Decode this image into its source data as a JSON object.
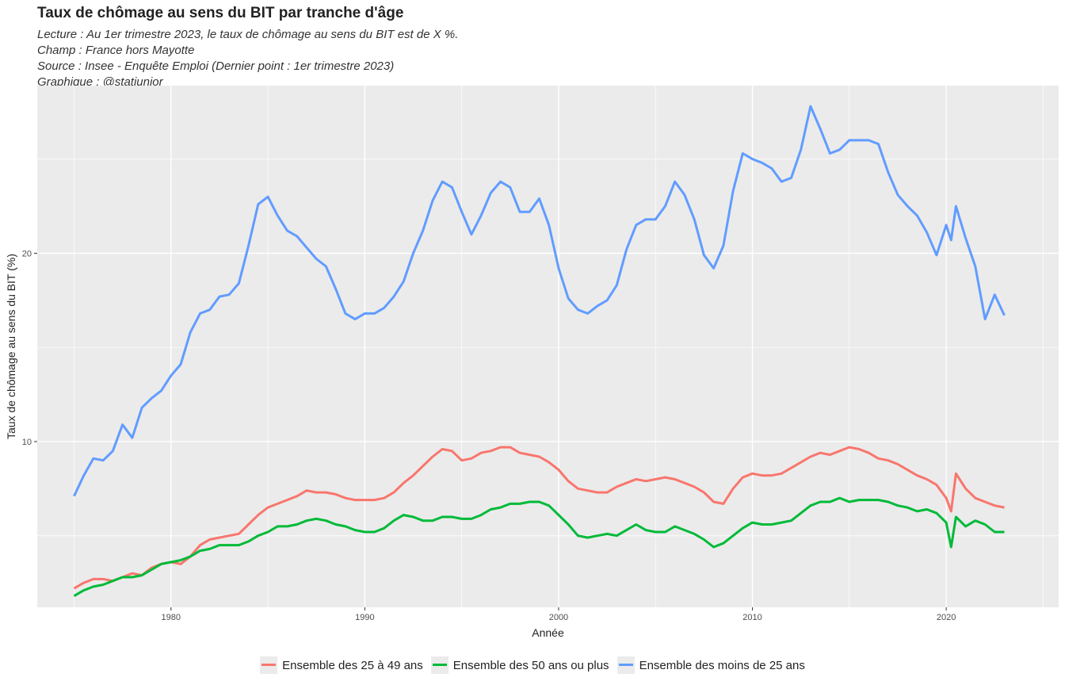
{
  "chart_data": {
    "type": "line",
    "title": "Taux de chômage au sens du BIT par tranche d'âge",
    "subtitle": [
      "Lecture : Au 1er trimestre 2023, le taux de chômage au sens du BIT est de X %.",
      "Champ : France hors Mayotte",
      "Source : Insee - Enquête Emploi (Dernier point : 1er trimestre 2023)",
      "Graphique : @statjunior"
    ],
    "xlabel": "Année",
    "ylabel": "Taux de chômage au sens du BIT (%)",
    "xlim": [
      1973.1,
      2025.8
    ],
    "ylim": [
      1.2,
      28.9
    ],
    "x_ticks": [
      1980,
      1990,
      2000,
      2010,
      2020
    ],
    "y_ticks": [
      10,
      20
    ],
    "grid": true,
    "background": "#ebebeb",
    "legend_position": "bottom",
    "series": [
      {
        "name": "Ensemble des 25 à 49 ans",
        "color": "#f8766d",
        "points": [
          [
            1975,
            2.2
          ],
          [
            1975.5,
            2.5
          ],
          [
            1976,
            2.7
          ],
          [
            1976.5,
            2.7
          ],
          [
            1977,
            2.6
          ],
          [
            1977.5,
            2.8
          ],
          [
            1978,
            3
          ],
          [
            1978.5,
            2.9
          ],
          [
            1979,
            3.3
          ],
          [
            1979.5,
            3.5
          ],
          [
            1980,
            3.6
          ],
          [
            1980.5,
            3.5
          ],
          [
            1981,
            3.9
          ],
          [
            1981.5,
            4.5
          ],
          [
            1982,
            4.8
          ],
          [
            1982.5,
            4.9
          ],
          [
            1983,
            5
          ],
          [
            1983.5,
            5.1
          ],
          [
            1984,
            5.6
          ],
          [
            1984.5,
            6.1
          ],
          [
            1985,
            6.5
          ],
          [
            1985.5,
            6.7
          ],
          [
            1986,
            6.9
          ],
          [
            1986.5,
            7.1
          ],
          [
            1987,
            7.4
          ],
          [
            1987.5,
            7.3
          ],
          [
            1988,
            7.3
          ],
          [
            1988.5,
            7.2
          ],
          [
            1989,
            7
          ],
          [
            1989.5,
            6.9
          ],
          [
            1990,
            6.9
          ],
          [
            1990.5,
            6.9
          ],
          [
            1991,
            7
          ],
          [
            1991.5,
            7.3
          ],
          [
            1992,
            7.8
          ],
          [
            1992.5,
            8.2
          ],
          [
            1993,
            8.7
          ],
          [
            1993.5,
            9.2
          ],
          [
            1994,
            9.6
          ],
          [
            1994.5,
            9.5
          ],
          [
            1995,
            9
          ],
          [
            1995.5,
            9.1
          ],
          [
            1996,
            9.4
          ],
          [
            1996.5,
            9.5
          ],
          [
            1997,
            9.7
          ],
          [
            1997.5,
            9.7
          ],
          [
            1998,
            9.4
          ],
          [
            1998.5,
            9.3
          ],
          [
            1999,
            9.2
          ],
          [
            1999.5,
            8.9
          ],
          [
            2000,
            8.5
          ],
          [
            2000.5,
            7.9
          ],
          [
            2001,
            7.5
          ],
          [
            2001.5,
            7.4
          ],
          [
            2002,
            7.3
          ],
          [
            2002.5,
            7.3
          ],
          [
            2003,
            7.6
          ],
          [
            2003.5,
            7.8
          ],
          [
            2004,
            8
          ],
          [
            2004.5,
            7.9
          ],
          [
            2005,
            8
          ],
          [
            2005.5,
            8.1
          ],
          [
            2006,
            8
          ],
          [
            2006.5,
            7.8
          ],
          [
            2007,
            7.6
          ],
          [
            2007.5,
            7.3
          ],
          [
            2008,
            6.8
          ],
          [
            2008.5,
            6.7
          ],
          [
            2009,
            7.5
          ],
          [
            2009.5,
            8.1
          ],
          [
            2010,
            8.3
          ],
          [
            2010.5,
            8.2
          ],
          [
            2011,
            8.2
          ],
          [
            2011.5,
            8.3
          ],
          [
            2012,
            8.6
          ],
          [
            2012.5,
            8.9
          ],
          [
            2013,
            9.2
          ],
          [
            2013.5,
            9.4
          ],
          [
            2014,
            9.3
          ],
          [
            2014.5,
            9.5
          ],
          [
            2015,
            9.7
          ],
          [
            2015.5,
            9.6
          ],
          [
            2016,
            9.4
          ],
          [
            2016.5,
            9.1
          ],
          [
            2017,
            9
          ],
          [
            2017.5,
            8.8
          ],
          [
            2018,
            8.5
          ],
          [
            2018.5,
            8.2
          ],
          [
            2019,
            8
          ],
          [
            2019.5,
            7.7
          ],
          [
            2020,
            7
          ],
          [
            2020.25,
            6.3
          ],
          [
            2020.5,
            8.3
          ],
          [
            2021,
            7.5
          ],
          [
            2021.5,
            7
          ],
          [
            2022,
            6.8
          ],
          [
            2022.5,
            6.6
          ],
          [
            2023,
            6.5
          ]
        ]
      },
      {
        "name": "Ensemble des 50 ans ou plus",
        "color": "#00ba38",
        "points": [
          [
            1975,
            1.8
          ],
          [
            1975.5,
            2.1
          ],
          [
            1976,
            2.3
          ],
          [
            1976.5,
            2.4
          ],
          [
            1977,
            2.6
          ],
          [
            1977.5,
            2.8
          ],
          [
            1978,
            2.8
          ],
          [
            1978.5,
            2.9
          ],
          [
            1979,
            3.2
          ],
          [
            1979.5,
            3.5
          ],
          [
            1980,
            3.6
          ],
          [
            1980.5,
            3.7
          ],
          [
            1981,
            3.9
          ],
          [
            1981.5,
            4.2
          ],
          [
            1982,
            4.3
          ],
          [
            1982.5,
            4.5
          ],
          [
            1983,
            4.5
          ],
          [
            1983.5,
            4.5
          ],
          [
            1984,
            4.7
          ],
          [
            1984.5,
            5
          ],
          [
            1985,
            5.2
          ],
          [
            1985.5,
            5.5
          ],
          [
            1986,
            5.5
          ],
          [
            1986.5,
            5.6
          ],
          [
            1987,
            5.8
          ],
          [
            1987.5,
            5.9
          ],
          [
            1988,
            5.8
          ],
          [
            1988.5,
            5.6
          ],
          [
            1989,
            5.5
          ],
          [
            1989.5,
            5.3
          ],
          [
            1990,
            5.2
          ],
          [
            1990.5,
            5.2
          ],
          [
            1991,
            5.4
          ],
          [
            1991.5,
            5.8
          ],
          [
            1992,
            6.1
          ],
          [
            1992.5,
            6
          ],
          [
            1993,
            5.8
          ],
          [
            1993.5,
            5.8
          ],
          [
            1994,
            6
          ],
          [
            1994.5,
            6
          ],
          [
            1995,
            5.9
          ],
          [
            1995.5,
            5.9
          ],
          [
            1996,
            6.1
          ],
          [
            1996.5,
            6.4
          ],
          [
            1997,
            6.5
          ],
          [
            1997.5,
            6.7
          ],
          [
            1998,
            6.7
          ],
          [
            1998.5,
            6.8
          ],
          [
            1999,
            6.8
          ],
          [
            1999.5,
            6.6
          ],
          [
            2000,
            6.1
          ],
          [
            2000.5,
            5.6
          ],
          [
            2001,
            5
          ],
          [
            2001.5,
            4.9
          ],
          [
            2002,
            5
          ],
          [
            2002.5,
            5.1
          ],
          [
            2003,
            5
          ],
          [
            2003.5,
            5.3
          ],
          [
            2004,
            5.6
          ],
          [
            2004.5,
            5.3
          ],
          [
            2005,
            5.2
          ],
          [
            2005.5,
            5.2
          ],
          [
            2006,
            5.5
          ],
          [
            2006.5,
            5.3
          ],
          [
            2007,
            5.1
          ],
          [
            2007.5,
            4.8
          ],
          [
            2008,
            4.4
          ],
          [
            2008.5,
            4.6
          ],
          [
            2009,
            5
          ],
          [
            2009.5,
            5.4
          ],
          [
            2010,
            5.7
          ],
          [
            2010.5,
            5.6
          ],
          [
            2011,
            5.6
          ],
          [
            2011.5,
            5.7
          ],
          [
            2012,
            5.8
          ],
          [
            2012.5,
            6.2
          ],
          [
            2013,
            6.6
          ],
          [
            2013.5,
            6.8
          ],
          [
            2014,
            6.8
          ],
          [
            2014.5,
            7
          ],
          [
            2015,
            6.8
          ],
          [
            2015.5,
            6.9
          ],
          [
            2016,
            6.9
          ],
          [
            2016.5,
            6.9
          ],
          [
            2017,
            6.8
          ],
          [
            2017.5,
            6.6
          ],
          [
            2018,
            6.5
          ],
          [
            2018.5,
            6.3
          ],
          [
            2019,
            6.4
          ],
          [
            2019.5,
            6.2
          ],
          [
            2020,
            5.7
          ],
          [
            2020.25,
            4.4
          ],
          [
            2020.5,
            6
          ],
          [
            2021,
            5.5
          ],
          [
            2021.5,
            5.8
          ],
          [
            2022,
            5.6
          ],
          [
            2022.5,
            5.2
          ],
          [
            2023,
            5.2
          ]
        ]
      },
      {
        "name": "Ensemble des moins de 25 ans",
        "color": "#619cff",
        "points": [
          [
            1975,
            7.1
          ],
          [
            1975.5,
            8.2
          ],
          [
            1976,
            9.1
          ],
          [
            1976.5,
            9
          ],
          [
            1977,
            9.5
          ],
          [
            1977.5,
            10.9
          ],
          [
            1978,
            10.2
          ],
          [
            1978.5,
            11.8
          ],
          [
            1979,
            12.3
          ],
          [
            1979.5,
            12.7
          ],
          [
            1980,
            13.5
          ],
          [
            1980.5,
            14.1
          ],
          [
            1981,
            15.8
          ],
          [
            1981.5,
            16.8
          ],
          [
            1982,
            17
          ],
          [
            1982.5,
            17.7
          ],
          [
            1983,
            17.8
          ],
          [
            1983.5,
            18.4
          ],
          [
            1984,
            20.4
          ],
          [
            1984.5,
            22.6
          ],
          [
            1985,
            23
          ],
          [
            1985.5,
            22
          ],
          [
            1986,
            21.2
          ],
          [
            1986.5,
            20.9
          ],
          [
            1987,
            20.3
          ],
          [
            1987.5,
            19.7
          ],
          [
            1988,
            19.3
          ],
          [
            1988.5,
            18.1
          ],
          [
            1989,
            16.8
          ],
          [
            1989.5,
            16.5
          ],
          [
            1990,
            16.8
          ],
          [
            1990.5,
            16.8
          ],
          [
            1991,
            17.1
          ],
          [
            1991.5,
            17.7
          ],
          [
            1992,
            18.5
          ],
          [
            1992.5,
            20
          ],
          [
            1993,
            21.2
          ],
          [
            1993.5,
            22.8
          ],
          [
            1994,
            23.8
          ],
          [
            1994.5,
            23.5
          ],
          [
            1995,
            22.2
          ],
          [
            1995.5,
            21
          ],
          [
            1996,
            22
          ],
          [
            1996.5,
            23.2
          ],
          [
            1997,
            23.8
          ],
          [
            1997.5,
            23.5
          ],
          [
            1998,
            22.2
          ],
          [
            1998.5,
            22.2
          ],
          [
            1999,
            22.9
          ],
          [
            1999.5,
            21.5
          ],
          [
            2000,
            19.2
          ],
          [
            2000.5,
            17.6
          ],
          [
            2001,
            17
          ],
          [
            2001.5,
            16.8
          ],
          [
            2002,
            17.2
          ],
          [
            2002.5,
            17.5
          ],
          [
            2003,
            18.3
          ],
          [
            2003.5,
            20.2
          ],
          [
            2004,
            21.5
          ],
          [
            2004.5,
            21.8
          ],
          [
            2005,
            21.8
          ],
          [
            2005.5,
            22.5
          ],
          [
            2006,
            23.8
          ],
          [
            2006.5,
            23.1
          ],
          [
            2007,
            21.8
          ],
          [
            2007.5,
            19.9
          ],
          [
            2008,
            19.2
          ],
          [
            2008.5,
            20.4
          ],
          [
            2009,
            23.3
          ],
          [
            2009.5,
            25.3
          ],
          [
            2010,
            25
          ],
          [
            2010.5,
            24.8
          ],
          [
            2011,
            24.5
          ],
          [
            2011.5,
            23.8
          ],
          [
            2012,
            24
          ],
          [
            2012.5,
            25.5
          ],
          [
            2013,
            27.8
          ],
          [
            2013.5,
            26.6
          ],
          [
            2014,
            25.3
          ],
          [
            2014.5,
            25.5
          ],
          [
            2015,
            26
          ],
          [
            2015.5,
            26
          ],
          [
            2016,
            26
          ],
          [
            2016.5,
            25.8
          ],
          [
            2017,
            24.3
          ],
          [
            2017.5,
            23.1
          ],
          [
            2018,
            22.5
          ],
          [
            2018.5,
            22
          ],
          [
            2019,
            21.1
          ],
          [
            2019.5,
            19.9
          ],
          [
            2020,
            21.5
          ],
          [
            2020.25,
            20.7
          ],
          [
            2020.5,
            22.5
          ],
          [
            2021,
            20.8
          ],
          [
            2021.5,
            19.3
          ],
          [
            2022,
            16.5
          ],
          [
            2022.5,
            17.8
          ],
          [
            2023,
            16.7
          ]
        ]
      }
    ]
  }
}
